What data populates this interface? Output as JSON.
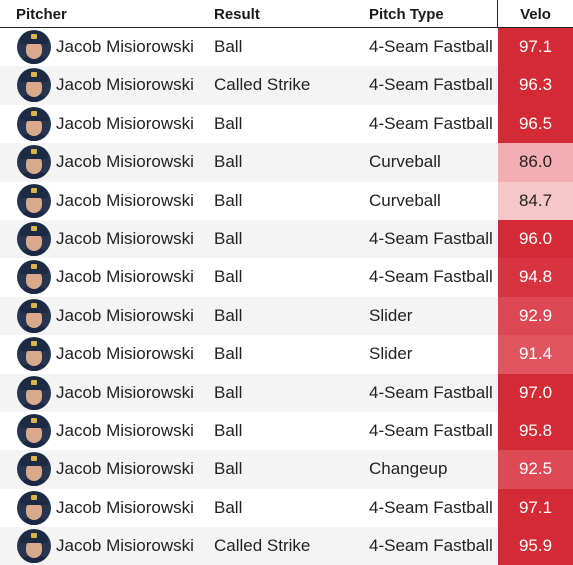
{
  "headers": {
    "pitcher": "Pitcher",
    "result": "Result",
    "pitch_type": "Pitch Type",
    "velo": "Velo"
  },
  "rows": [
    {
      "pitcher": "Jacob Misiorowski",
      "result": "Ball",
      "pitch_type": "4-Seam Fastball",
      "velo": "97.1",
      "velo_color": "#d42a35",
      "velo_text_color": "#ffffff"
    },
    {
      "pitcher": "Jacob Misiorowski",
      "result": "Called Strike",
      "pitch_type": "4-Seam Fastball",
      "velo": "96.3",
      "velo_color": "#d42a35",
      "velo_text_color": "#ffffff"
    },
    {
      "pitcher": "Jacob Misiorowski",
      "result": "Ball",
      "pitch_type": "4-Seam Fastball",
      "velo": "96.5",
      "velo_color": "#d42a35",
      "velo_text_color": "#ffffff"
    },
    {
      "pitcher": "Jacob Misiorowski",
      "result": "Ball",
      "pitch_type": "Curveball",
      "velo": "86.0",
      "velo_color": "#f2aeb0",
      "velo_text_color": "#222222"
    },
    {
      "pitcher": "Jacob Misiorowski",
      "result": "Ball",
      "pitch_type": "Curveball",
      "velo": "84.7",
      "velo_color": "#f6c7c8",
      "velo_text_color": "#222222"
    },
    {
      "pitcher": "Jacob Misiorowski",
      "result": "Ball",
      "pitch_type": "4-Seam Fastball",
      "velo": "96.0",
      "velo_color": "#d42a35",
      "velo_text_color": "#ffffff"
    },
    {
      "pitcher": "Jacob Misiorowski",
      "result": "Ball",
      "pitch_type": "4-Seam Fastball",
      "velo": "94.8",
      "velo_color": "#d73340",
      "velo_text_color": "#ffffff"
    },
    {
      "pitcher": "Jacob Misiorowski",
      "result": "Ball",
      "pitch_type": "Slider",
      "velo": "92.9",
      "velo_color": "#dc4753",
      "velo_text_color": "#ffffff"
    },
    {
      "pitcher": "Jacob Misiorowski",
      "result": "Ball",
      "pitch_type": "Slider",
      "velo": "91.4",
      "velo_color": "#e05560",
      "velo_text_color": "#ffffff"
    },
    {
      "pitcher": "Jacob Misiorowski",
      "result": "Ball",
      "pitch_type": "4-Seam Fastball",
      "velo": "97.0",
      "velo_color": "#d42a35",
      "velo_text_color": "#ffffff"
    },
    {
      "pitcher": "Jacob Misiorowski",
      "result": "Ball",
      "pitch_type": "4-Seam Fastball",
      "velo": "95.8",
      "velo_color": "#d42a35",
      "velo_text_color": "#ffffff"
    },
    {
      "pitcher": "Jacob Misiorowski",
      "result": "Ball",
      "pitch_type": "Changeup",
      "velo": "92.5",
      "velo_color": "#dd4a55",
      "velo_text_color": "#ffffff"
    },
    {
      "pitcher": "Jacob Misiorowski",
      "result": "Ball",
      "pitch_type": "4-Seam Fastball",
      "velo": "97.1",
      "velo_color": "#d42a35",
      "velo_text_color": "#ffffff"
    },
    {
      "pitcher": "Jacob Misiorowski",
      "result": "Called Strike",
      "pitch_type": "4-Seam Fastball",
      "velo": "95.9",
      "velo_color": "#d42a35",
      "velo_text_color": "#ffffff"
    }
  ]
}
